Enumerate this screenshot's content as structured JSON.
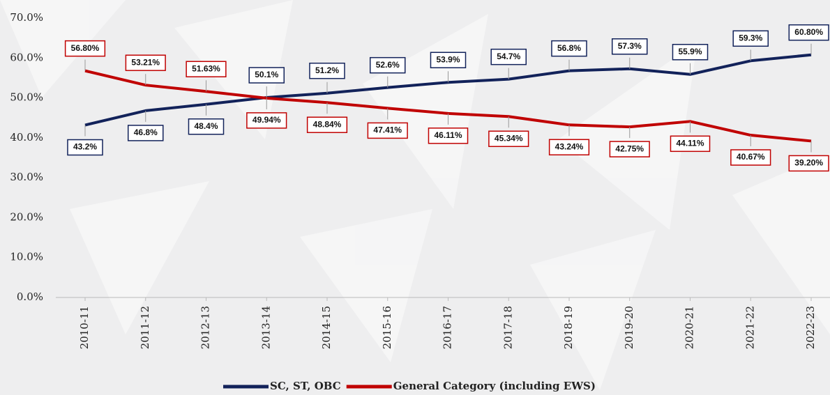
{
  "chart_data": {
    "type": "line",
    "categories": [
      "2010-11",
      "2011-12",
      "2012-13",
      "2013-14",
      "2014-15",
      "2015-16",
      "2016-17",
      "2017-18",
      "2018-19",
      "2019-20",
      "2020-21",
      "2021-22",
      "2022-23"
    ],
    "series": [
      {
        "name": "SC, ST, OBC",
        "color": "#12225a",
        "values": [
          43.2,
          46.8,
          48.4,
          50.1,
          51.2,
          52.6,
          53.9,
          54.7,
          56.8,
          57.3,
          55.9,
          59.3,
          60.8
        ],
        "value_labels": [
          "43.2%",
          "46.8%",
          "48.4%",
          "50.1%",
          "51.2%",
          "52.6%",
          "53.9%",
          "54.7%",
          "56.8%",
          "57.3%",
          "55.9%",
          "59.3%",
          "60.80%"
        ]
      },
      {
        "name": "General Category (including EWS)",
        "color": "#c00000",
        "values": [
          56.8,
          53.21,
          51.63,
          49.94,
          48.84,
          47.41,
          46.11,
          45.34,
          43.24,
          42.75,
          44.11,
          40.67,
          39.2
        ],
        "value_labels": [
          "56.80%",
          "53.21%",
          "51.63%",
          "49.94%",
          "48.84%",
          "47.41%",
          "46.11%",
          "45.34%",
          "43.24%",
          "42.75%",
          "44.11%",
          "40.67%",
          "39.20%"
        ]
      }
    ],
    "ylim": [
      0,
      70
    ],
    "yticks": [
      {
        "value": 0,
        "label": "0.0%"
      },
      {
        "value": 10,
        "label": "10.0%"
      },
      {
        "value": 20,
        "label": "20.0%"
      },
      {
        "value": 30,
        "label": "30.0%"
      },
      {
        "value": 40,
        "label": "40.0%"
      },
      {
        "value": 50,
        "label": "50.0%"
      },
      {
        "value": 60,
        "label": "60.0%"
      },
      {
        "value": 70,
        "label": "70.0%"
      }
    ],
    "legend": "bottom"
  }
}
